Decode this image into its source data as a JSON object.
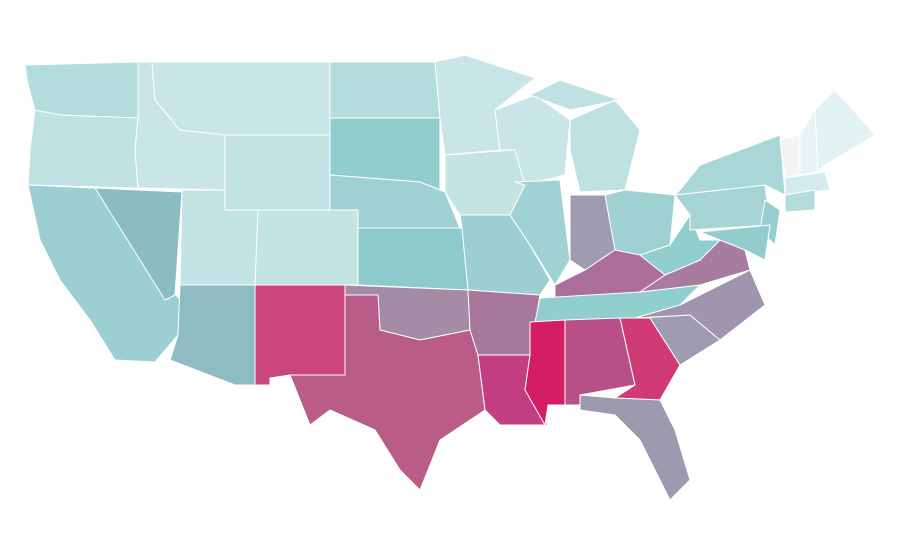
{
  "map": {
    "type": "choropleth",
    "regions": [
      {
        "color": "#b3dcdc"
      },
      {
        "color": "#bfe1e2"
      },
      {
        "color": "#9ccfd1"
      },
      {
        "color": "#8bbcc1"
      },
      {
        "color": "#c9e5e7"
      },
      {
        "color": "#c9e5e7"
      },
      {
        "color": "#c3e2e3"
      },
      {
        "color": "#c4e3e4"
      },
      {
        "color": "#8fbcc2"
      },
      {
        "color": "#c4e3e4"
      },
      {
        "color": "#c9457c"
      },
      {
        "color": "#b3dcdc"
      },
      {
        "color": "#92cdce"
      },
      {
        "color": "#9fd1d2"
      },
      {
        "color": "#8dcacb"
      },
      {
        "color": "#a68ba6"
      },
      {
        "color": "#b95c88"
      },
      {
        "color": "#c9e5e7"
      },
      {
        "color": "#c4e3e4"
      },
      {
        "color": "#9ccfd1"
      },
      {
        "color": "#a8789c"
      },
      {
        "color": "#c33d83"
      },
      {
        "color": "#c9e5e7"
      },
      {
        "color": "#a0d2d3"
      },
      {
        "color": "#bfe1e2"
      },
      {
        "color": "#9f9bb0"
      },
      {
        "color": "#9fd1d2"
      },
      {
        "color": "#ac6e9b"
      },
      {
        "color": "#91cfcf"
      },
      {
        "color": "#d31e66"
      },
      {
        "color": "#b84f86"
      },
      {
        "color": "#d03b77"
      },
      {
        "color": "#9d9ab0"
      },
      {
        "color": "#9f9bb0"
      },
      {
        "color": "#a095af"
      },
      {
        "color": "#a87c9f"
      },
      {
        "color": "#91cfcf"
      },
      {
        "color": "#a6d4d5"
      },
      {
        "color": "#a9d6d7"
      },
      {
        "color": "#97cfd0"
      },
      {
        "color": "#92cdce"
      },
      {
        "color": "#f2f4f5"
      },
      {
        "color": "#e7f3f4"
      },
      {
        "color": "#e2f1f2"
      },
      {
        "color": "#d3ebec"
      },
      {
        "color": "#b3dcdc"
      }
    ]
  }
}
